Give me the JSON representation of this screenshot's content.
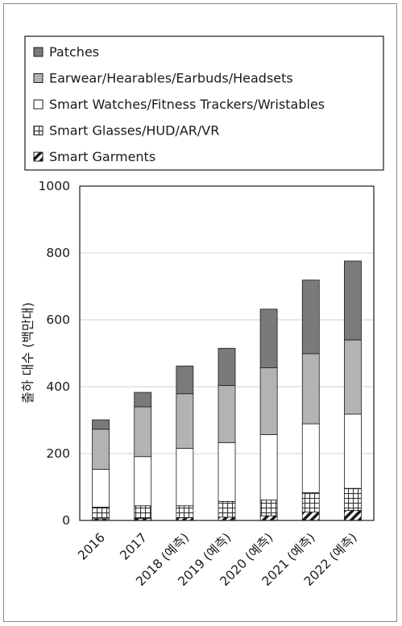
{
  "chart_data": {
    "type": "bar",
    "stacked": true,
    "ylabel": "출하 대수 (백만대)",
    "ylim": [
      0,
      1000
    ],
    "yticks": [
      0,
      200,
      400,
      600,
      800,
      1000
    ],
    "grid": true,
    "legend_position": "top",
    "categories": [
      "2016",
      "2017",
      "2018 (예측)",
      "2019 (예측)",
      "2020 (예측)",
      "2021 (예측)",
      "2022 (예측)"
    ],
    "series": [
      {
        "name": "Smart Garments",
        "pattern": "diagonal-hatch",
        "values": [
          5,
          6,
          8,
          10,
          14,
          25,
          30
        ]
      },
      {
        "name": "Smart Glasses/HUD/AR/VR",
        "pattern": "grid-hatch",
        "values": [
          35,
          38,
          36,
          47,
          47,
          58,
          66
        ]
      },
      {
        "name": "Smart Watches/Fitness Trackers/Wristables",
        "color": "#ffffff",
        "values": [
          113,
          147,
          172,
          176,
          196,
          206,
          222
        ]
      },
      {
        "name": "Earwear/Hearables/Earbuds/Headsets",
        "color": "#b3b3b3",
        "values": [
          120,
          149,
          163,
          171,
          200,
          210,
          222
        ]
      },
      {
        "name": "Patches",
        "color": "#7a7a7a",
        "values": [
          28,
          43,
          83,
          111,
          175,
          220,
          236
        ]
      }
    ],
    "legend": [
      "Patches",
      "Earwear/Hearables/Earbuds/Headsets",
      "Smart Watches/Fitness Trackers/Wristables",
      "Smart Glasses/HUD/AR/VR",
      "Smart Garments"
    ]
  }
}
